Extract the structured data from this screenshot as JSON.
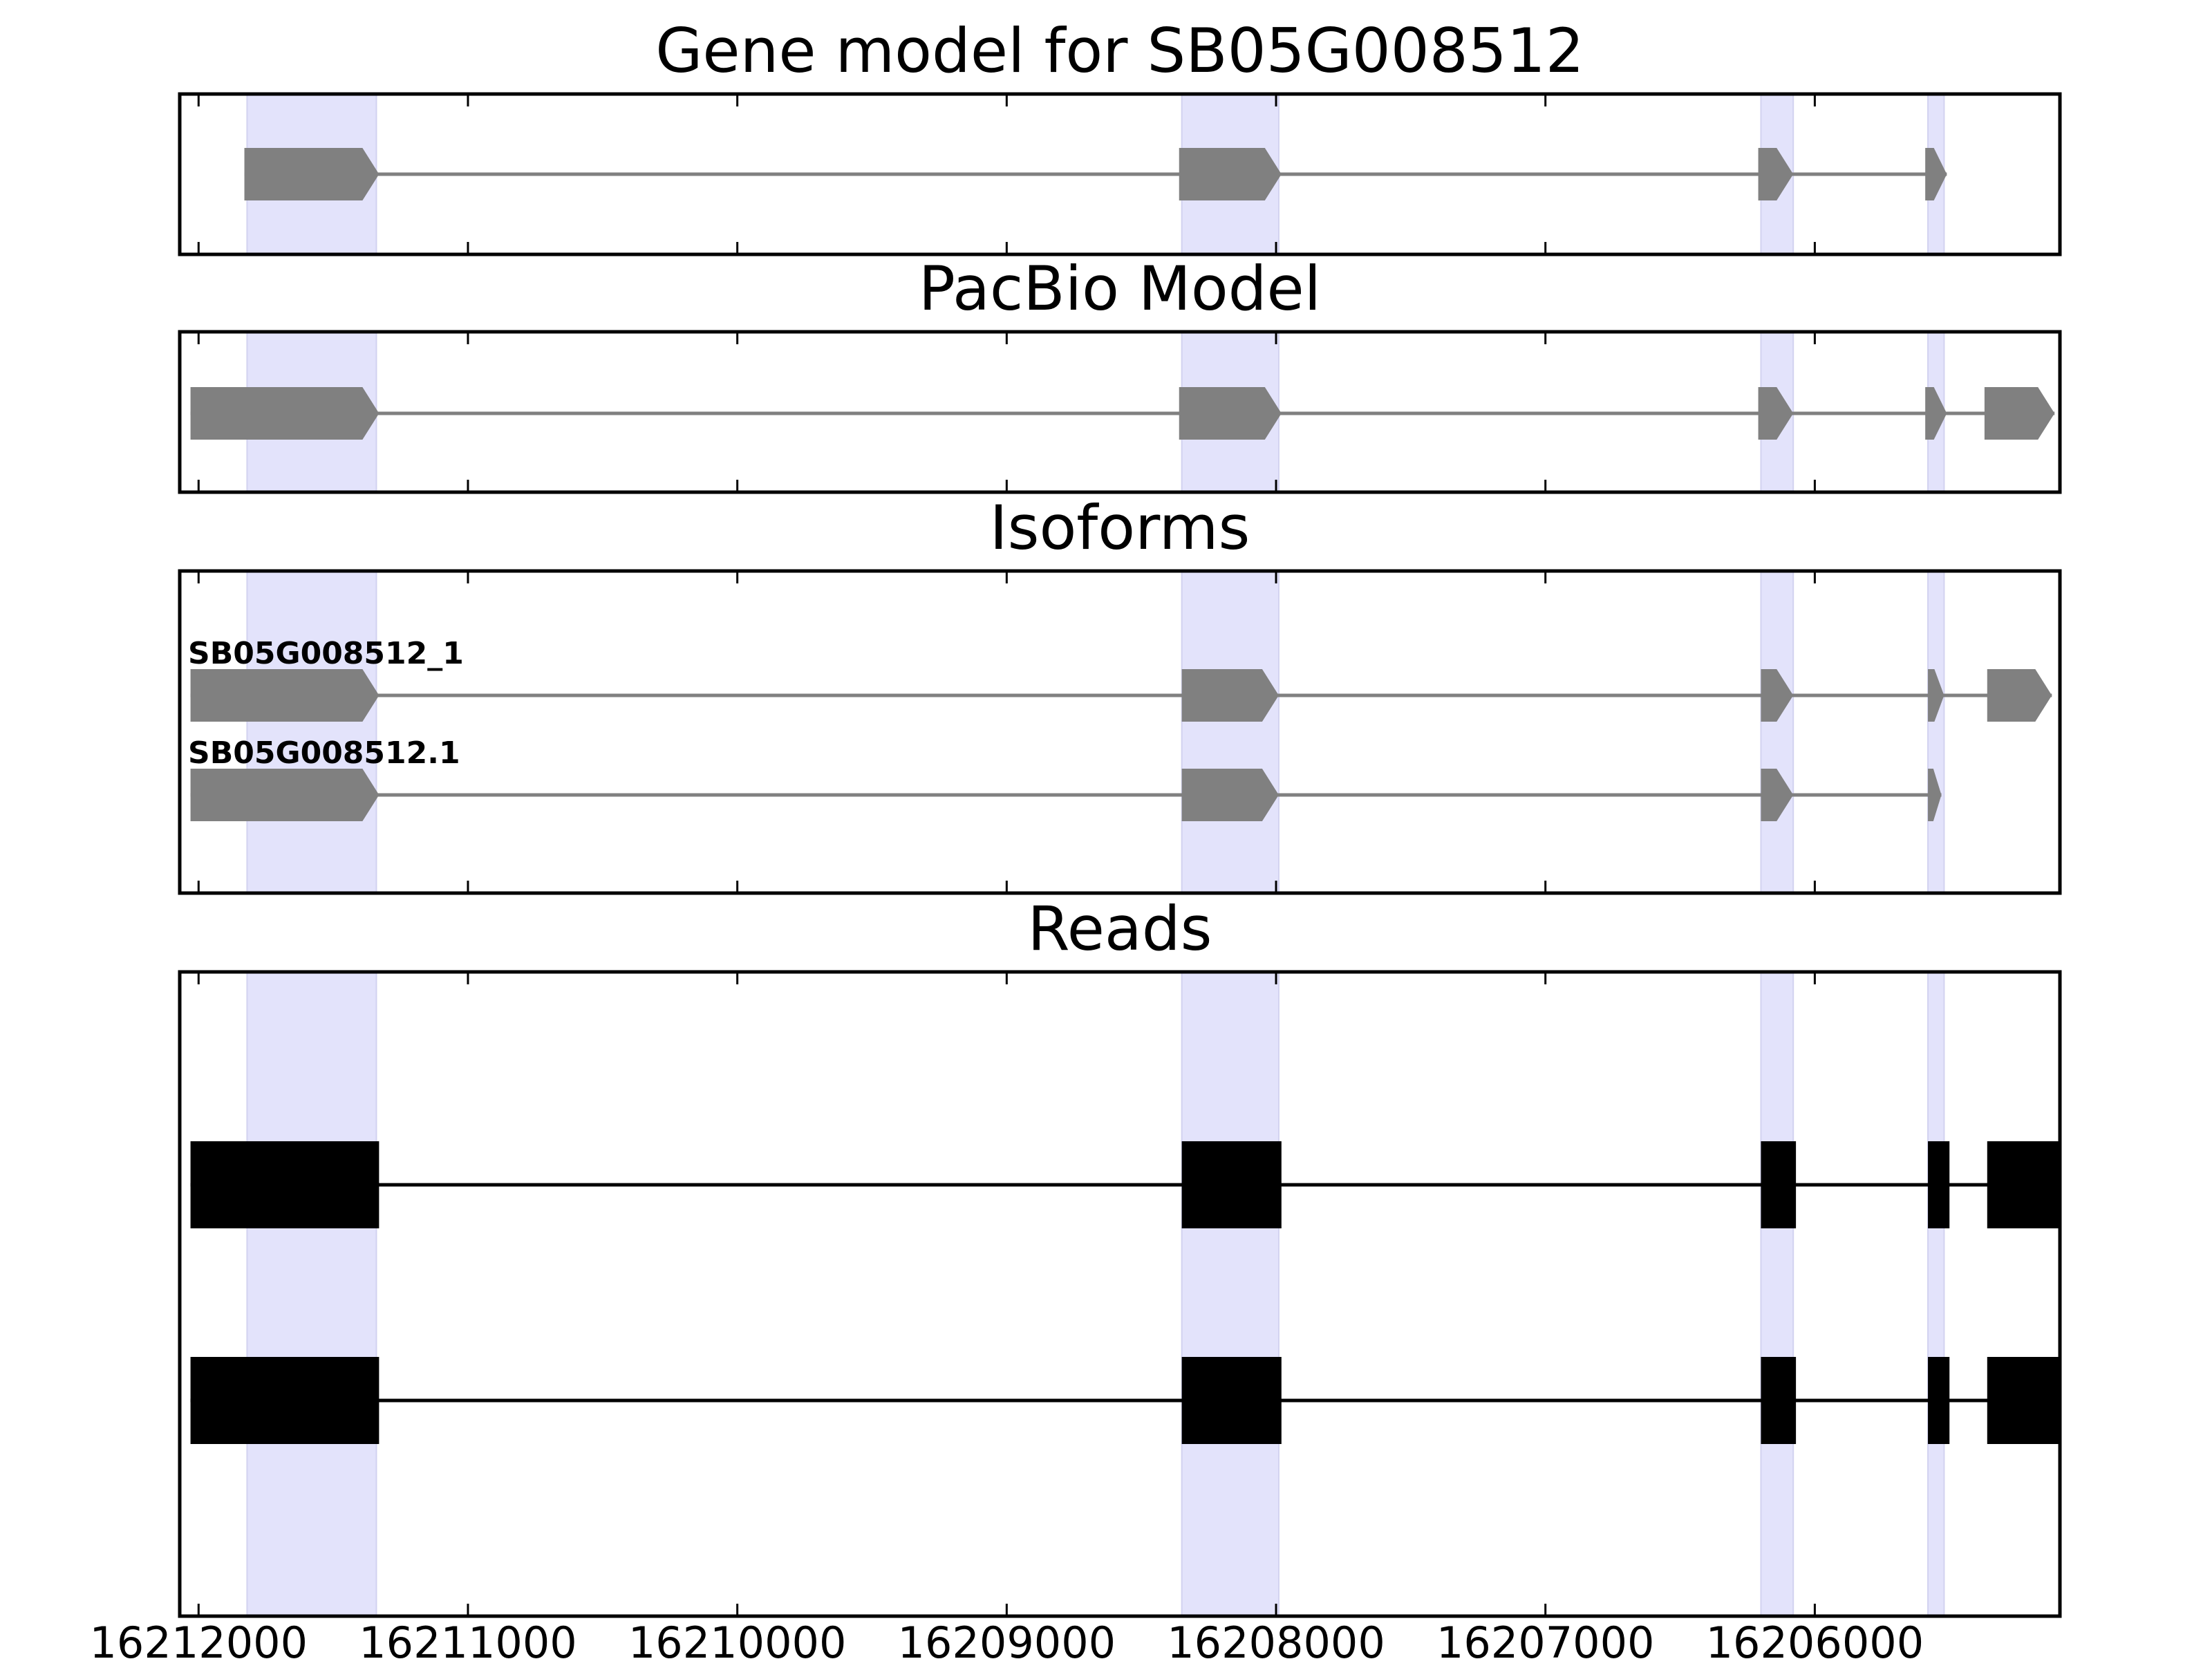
{
  "chart_data": {
    "type": "gene-structure",
    "x_axis": {
      "direction": "reversed",
      "xlim": [
        16212070,
        16205090
      ],
      "ticks": [
        16212000,
        16211000,
        16210000,
        16209000,
        16208000,
        16207000,
        16206000
      ],
      "tick_labels": [
        "16212000",
        "16211000",
        "16210000",
        "16209000",
        "16208000",
        "16207000",
        "16206000"
      ]
    },
    "exon_highlights": [
      [
        16211820,
        16211340
      ],
      [
        16208350,
        16207990
      ],
      [
        16206200,
        16206080
      ],
      [
        16205580,
        16205520
      ]
    ],
    "colors": {
      "highlight": "#e3e3fb",
      "model_exon": "#808080",
      "model_intron": "#808080",
      "read": "#000000",
      "frame": "#000000"
    },
    "panels": [
      {
        "title": "Gene model for SB05G008512",
        "tracks": [
          {
            "label": "",
            "strand": "-",
            "exons": [
              [
                16211830,
                16211330
              ],
              [
                16208360,
                16207980
              ],
              [
                16206210,
                16206080
              ],
              [
                16205590,
                16205510
              ]
            ]
          }
        ]
      },
      {
        "title": "PacBio Model",
        "tracks": [
          {
            "label": "",
            "strand": "-",
            "exons": [
              [
                16212030,
                16211330
              ],
              [
                16208360,
                16207980
              ],
              [
                16206210,
                16206080
              ],
              [
                16205590,
                16205510
              ],
              [
                16205370,
                16205110
              ]
            ]
          }
        ]
      },
      {
        "title": "Isoforms",
        "tracks": [
          {
            "label": "SB05G008512_1",
            "strand": "-",
            "exons": [
              [
                16212030,
                16211330
              ],
              [
                16208350,
                16207990
              ],
              [
                16206200,
                16206080
              ],
              [
                16205580,
                16205520
              ],
              [
                16205360,
                16205120
              ]
            ]
          },
          {
            "label": "SB05G008512.1",
            "strand": "-",
            "exons": [
              [
                16212030,
                16211330
              ],
              [
                16208350,
                16207990
              ],
              [
                16206200,
                16206080
              ],
              [
                16205580,
                16205530
              ]
            ]
          }
        ]
      },
      {
        "title": "Reads",
        "tracks": [
          {
            "label": "",
            "strand": "",
            "exons": [
              [
                16212030,
                16211330
              ],
              [
                16208350,
                16207980
              ],
              [
                16206200,
                16206070
              ],
              [
                16205580,
                16205500
              ],
              [
                16205360,
                16205090
              ]
            ]
          },
          {
            "label": "",
            "strand": "",
            "exons": [
              [
                16212030,
                16211330
              ],
              [
                16208350,
                16207980
              ],
              [
                16206200,
                16206070
              ],
              [
                16205580,
                16205500
              ],
              [
                16205360,
                16205090
              ]
            ]
          }
        ]
      }
    ]
  }
}
